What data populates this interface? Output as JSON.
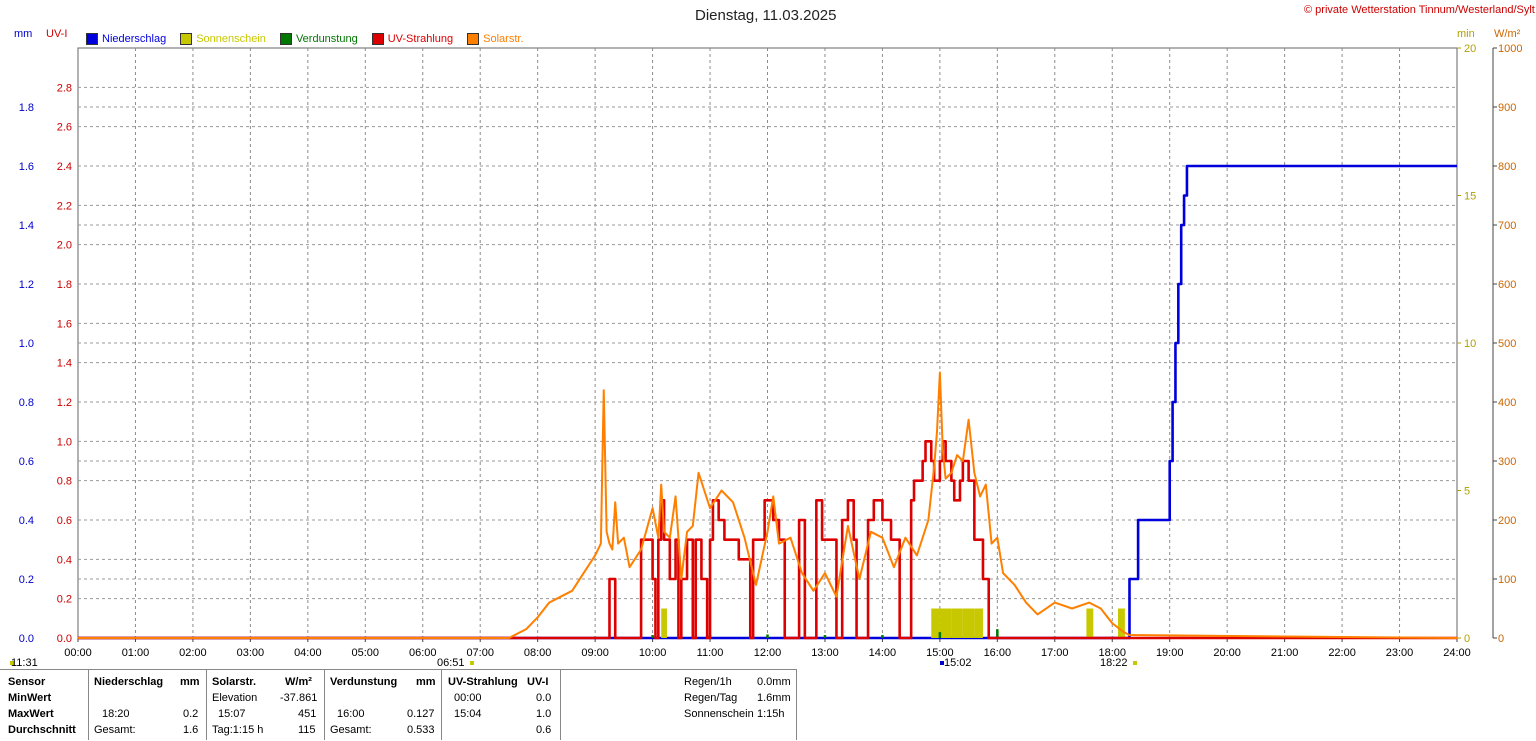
{
  "header": {
    "title": "Dienstag, 11.03.2025",
    "copyright": "© private Wetterstation Tinnum/Westerland/Sylt",
    "unit_mm": "mm",
    "unit_uvi": "UV-I",
    "unit_min": "min",
    "unit_wm2": "W/m²"
  },
  "legend": [
    {
      "label": "Niederschlag",
      "color": "#0000dd"
    },
    {
      "label": "Sonnenschein",
      "color": "#c8c800"
    },
    {
      "label": "Verdunstung",
      "color": "#007700"
    },
    {
      "label": "UV-Strahlung",
      "color": "#dd0000"
    },
    {
      "label": "Solarstr.",
      "color": "#ff7f00"
    }
  ],
  "markers": {
    "left_time": "11:31",
    "sunrise": "06:51",
    "uv_max_time": "15:02",
    "sunset": "18:22"
  },
  "chart_data": {
    "type": "line",
    "xlabel": "",
    "x_ticks": [
      "00:00",
      "01:00",
      "02:00",
      "03:00",
      "04:00",
      "05:00",
      "06:00",
      "07:00",
      "08:00",
      "09:00",
      "10:00",
      "11:00",
      "12:00",
      "13:00",
      "14:00",
      "15:00",
      "16:00",
      "17:00",
      "18:00",
      "19:00",
      "20:00",
      "21:00",
      "22:00",
      "23:00",
      "24:00"
    ],
    "axes": {
      "precip_mm": {
        "ticks": [
          "0.0",
          "0.2",
          "0.4",
          "0.6",
          "0.8",
          "1.0",
          "1.2",
          "1.4",
          "1.6",
          "1.8"
        ],
        "range": [
          0,
          2.0
        ]
      },
      "uv_index": {
        "ticks": [
          "0.0",
          "0.2",
          "0.4",
          "0.6",
          "0.8",
          "1.0",
          "1.2",
          "1.4",
          "1.6",
          "1.8",
          "2.0",
          "2.2",
          "2.4",
          "2.6",
          "2.8"
        ],
        "range": [
          0,
          3.0
        ]
      },
      "sunshine_min": {
        "ticks": [
          "0",
          "5",
          "10",
          "15",
          "20"
        ],
        "range": [
          0,
          20
        ]
      },
      "solar_wm2": {
        "ticks": [
          "0",
          "100",
          "200",
          "300",
          "400",
          "500",
          "600",
          "700",
          "800",
          "900",
          "1000"
        ],
        "range": [
          0,
          1000
        ]
      }
    },
    "grid": true,
    "series": [
      {
        "name": "Niederschlag",
        "color": "#0000dd",
        "axis": "precip_mm",
        "step": true,
        "x": [
          0.0,
          18.22,
          18.3,
          18.45,
          19.0,
          19.05,
          19.1,
          19.15,
          19.2,
          19.25,
          19.3,
          19.35,
          19.4,
          24.0
        ],
        "y": [
          0.0,
          0.0,
          0.2,
          0.4,
          0.6,
          0.8,
          1.0,
          1.2,
          1.4,
          1.5,
          1.6,
          1.6,
          1.6,
          1.6
        ]
      },
      {
        "name": "Sonnenschein",
        "color": "#c8c800",
        "axis": "sunshine_min",
        "bars": true,
        "x": [
          10.15,
          14.85,
          15.0,
          15.2,
          15.4,
          15.6,
          17.55,
          18.1
        ],
        "y": [
          1.0,
          1.0,
          1.0,
          1.0,
          1.0,
          1.0,
          1.0,
          1.0
        ],
        "width": [
          0.1,
          0.15,
          0.2,
          0.2,
          0.2,
          0.15,
          0.12,
          0.12
        ]
      },
      {
        "name": "Verdunstung",
        "color": "#007700",
        "axis": "precip_mm",
        "bars": true,
        "x": [
          9.0,
          10.0,
          11.0,
          12.0,
          13.0,
          14.0,
          15.0,
          16.0,
          17.0,
          18.0
        ],
        "y": [
          0.005,
          0.01,
          0.01,
          0.012,
          0.01,
          0.01,
          0.02,
          0.03,
          0.005,
          0.003
        ]
      },
      {
        "name": "UV-Strahlung",
        "color": "#dd0000",
        "axis": "uv_index",
        "step": true,
        "x": [
          0.0,
          9.2,
          9.25,
          9.35,
          9.4,
          9.8,
          9.85,
          10.0,
          10.05,
          10.1,
          10.15,
          10.2,
          10.3,
          10.4,
          10.45,
          10.5,
          10.6,
          10.7,
          10.75,
          10.85,
          10.95,
          11.0,
          11.05,
          11.15,
          11.25,
          11.4,
          11.5,
          11.7,
          11.75,
          11.95,
          12.1,
          12.2,
          12.3,
          12.35,
          12.55,
          12.65,
          12.8,
          12.85,
          12.95,
          13.1,
          13.2,
          13.3,
          13.4,
          13.5,
          13.55,
          13.75,
          13.85,
          14.0,
          14.15,
          14.3,
          14.5,
          14.55,
          14.7,
          14.75,
          14.85,
          14.9,
          15.0,
          15.05,
          15.1,
          15.2,
          15.25,
          15.35,
          15.4,
          15.5,
          15.6,
          15.75,
          15.85,
          15.9,
          16.0,
          24.0
        ],
        "y": [
          0.0,
          0.0,
          0.3,
          0.0,
          0.0,
          0.5,
          0.5,
          0.3,
          0.0,
          0.5,
          0.7,
          0.5,
          0.3,
          0.5,
          0.0,
          0.3,
          0.5,
          0.0,
          0.5,
          0.3,
          0.0,
          0.5,
          0.7,
          0.6,
          0.5,
          0.5,
          0.4,
          0.0,
          0.5,
          0.7,
          0.6,
          0.5,
          0.0,
          0.0,
          0.6,
          0.0,
          0.0,
          0.7,
          0.5,
          0.5,
          0.0,
          0.6,
          0.7,
          0.5,
          0.0,
          0.6,
          0.7,
          0.6,
          0.5,
          0.0,
          0.7,
          0.8,
          0.9,
          1.0,
          0.9,
          0.8,
          0.9,
          1.0,
          0.9,
          0.8,
          0.7,
          0.8,
          0.9,
          0.8,
          0.5,
          0.3,
          0.0,
          0.0,
          0.0,
          0.0
        ]
      },
      {
        "name": "Solarstr.",
        "color": "#ff7f00",
        "axis": "solar_wm2",
        "x": [
          0.0,
          7.5,
          7.6,
          7.8,
          8.0,
          8.2,
          8.4,
          8.6,
          8.8,
          9.0,
          9.1,
          9.15,
          9.2,
          9.25,
          9.3,
          9.35,
          9.4,
          9.5,
          9.6,
          9.8,
          10.0,
          10.1,
          10.15,
          10.2,
          10.3,
          10.4,
          10.5,
          10.6,
          10.7,
          10.8,
          10.9,
          11.0,
          11.2,
          11.4,
          11.6,
          11.8,
          12.0,
          12.1,
          12.2,
          12.4,
          12.6,
          12.8,
          13.0,
          13.2,
          13.4,
          13.6,
          13.8,
          14.0,
          14.2,
          14.4,
          14.6,
          14.8,
          14.9,
          14.95,
          15.0,
          15.05,
          15.1,
          15.2,
          15.3,
          15.4,
          15.5,
          15.6,
          15.7,
          15.8,
          15.9,
          16.0,
          16.1,
          16.3,
          16.5,
          16.7,
          17.0,
          17.3,
          17.6,
          17.8,
          18.0,
          18.2,
          18.3,
          24.0
        ],
        "y": [
          0,
          0,
          5,
          15,
          35,
          60,
          70,
          80,
          110,
          140,
          160,
          420,
          180,
          160,
          150,
          230,
          160,
          170,
          120,
          150,
          220,
          170,
          260,
          180,
          170,
          240,
          100,
          180,
          190,
          280,
          250,
          220,
          250,
          230,
          170,
          90,
          180,
          240,
          160,
          170,
          110,
          80,
          110,
          70,
          190,
          100,
          180,
          170,
          120,
          170,
          140,
          200,
          290,
          350,
          450,
          320,
          270,
          280,
          310,
          300,
          370,
          280,
          240,
          260,
          160,
          170,
          110,
          90,
          60,
          40,
          60,
          50,
          60,
          50,
          25,
          10,
          5,
          0
        ]
      }
    ]
  },
  "stats": {
    "col_sensor": {
      "header": "Sensor",
      "min": "MinWert",
      "max": "MaxWert",
      "avg": "Durchschnitt"
    },
    "niederschlag": {
      "header": "Niederschlag",
      "unit": "mm",
      "max_time": "18:20",
      "max_val": "0.2",
      "avg_label": "Gesamt:",
      "avg_val": "1.6"
    },
    "solar": {
      "header": "Solarstr.",
      "unit": "W/m²",
      "min_label": "Elevation",
      "min_val": "-37.861",
      "max_time": "15:07",
      "max_val": "451",
      "avg_label": "Tag:1:15 h",
      "avg_val": "115"
    },
    "verdunstung": {
      "header": "Verdunstung",
      "unit": "mm",
      "max_time": "16:00",
      "max_val": "0.127",
      "avg_label": "Gesamt:",
      "avg_val": "0.533"
    },
    "uv": {
      "header": "UV-Strahlung",
      "unit": "UV-I",
      "min_time": "00:00",
      "min_val": "0.0",
      "max_time": "15:04",
      "max_val": "1.0",
      "avg_val": "0.6"
    },
    "summary": [
      {
        "label": "Regen/1h",
        "value": "0.0mm"
      },
      {
        "label": "Regen/Tag",
        "value": "1.6mm"
      },
      {
        "label": "Sonnenschein",
        "value": "1:15h"
      }
    ]
  }
}
